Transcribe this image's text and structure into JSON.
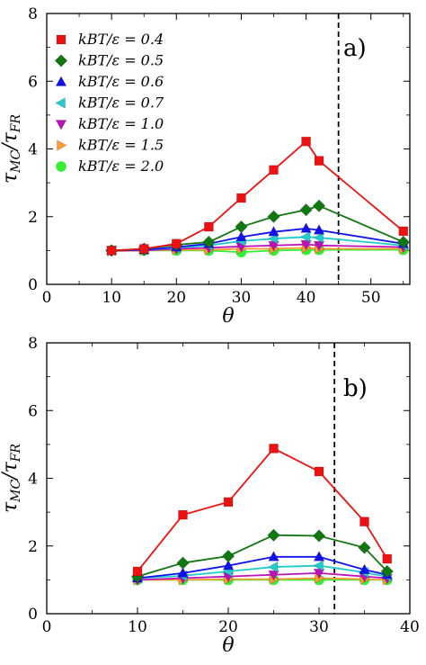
{
  "chart_data": [
    {
      "type": "line",
      "panel_label": "a)",
      "xlabel": "θ",
      "ylabel": "τMC/τFR",
      "xlim": [
        0,
        56
      ],
      "ylim": [
        0,
        8
      ],
      "xticks": [
        0,
        10,
        20,
        30,
        40,
        50
      ],
      "yticks": [
        0,
        2,
        4,
        6,
        8
      ],
      "vline": 45,
      "legend_position": "top-left",
      "series": [
        {
          "name": "kBT/ε = 0.4",
          "color": "#ee1111",
          "marker": "square",
          "x": [
            10,
            15,
            20,
            25,
            30,
            35,
            40,
            42,
            55
          ],
          "y": [
            1.0,
            1.05,
            1.2,
            1.7,
            2.55,
            3.38,
            4.22,
            3.65,
            1.57
          ]
        },
        {
          "name": "kBT/ε = 0.5",
          "color": "#117711",
          "marker": "diamond",
          "x": [
            10,
            15,
            20,
            25,
            30,
            35,
            40,
            42,
            55
          ],
          "y": [
            1.0,
            1.05,
            1.17,
            1.25,
            1.7,
            2.0,
            2.2,
            2.32,
            1.25
          ]
        },
        {
          "name": "kBT/ε = 0.6",
          "color": "#1111ee",
          "marker": "triangle-up",
          "x": [
            10,
            15,
            20,
            25,
            30,
            35,
            40,
            42,
            55
          ],
          "y": [
            1.0,
            1.02,
            1.1,
            1.2,
            1.4,
            1.55,
            1.65,
            1.6,
            1.2
          ]
        },
        {
          "name": "kBT/ε = 0.7",
          "color": "#22cccc",
          "marker": "triangle-left",
          "x": [
            10,
            15,
            20,
            25,
            30,
            35,
            40,
            42,
            55
          ],
          "y": [
            1.0,
            1.02,
            1.08,
            1.15,
            1.28,
            1.35,
            1.4,
            1.38,
            1.15
          ]
        },
        {
          "name": "kBT/ε = 1.0",
          "color": "#bb11bb",
          "marker": "triangle-down",
          "x": [
            10,
            15,
            20,
            25,
            30,
            35,
            40,
            42,
            55
          ],
          "y": [
            1.0,
            1.0,
            1.05,
            1.08,
            1.12,
            1.15,
            1.18,
            1.15,
            1.1
          ]
        },
        {
          "name": "kBT/ε = 1.5",
          "color": "#ff9933",
          "marker": "triangle-right",
          "x": [
            10,
            15,
            20,
            25,
            30,
            35,
            40,
            42,
            55
          ],
          "y": [
            0.98,
            1.0,
            1.02,
            1.02,
            1.05,
            1.05,
            1.08,
            1.05,
            1.05
          ]
        },
        {
          "name": "kBT/ε = 2.0",
          "color": "#33ee33",
          "marker": "circle",
          "x": [
            10,
            15,
            20,
            25,
            30,
            35,
            40,
            42,
            55
          ],
          "y": [
            1.0,
            1.0,
            1.0,
            1.0,
            0.95,
            1.0,
            1.02,
            1.02,
            1.02
          ]
        }
      ]
    },
    {
      "type": "line",
      "panel_label": "b)",
      "xlabel": "θ",
      "ylabel": "τMC/τFR",
      "xlim": [
        0,
        40
      ],
      "ylim": [
        0,
        8
      ],
      "xticks": [
        0,
        10,
        20,
        30,
        40
      ],
      "yticks": [
        0,
        2,
        4,
        6,
        8
      ],
      "vline": 31.7,
      "series": [
        {
          "name": "kBT/ε = 0.4",
          "color": "#ee1111",
          "marker": "square",
          "x": [
            10,
            15,
            20,
            25,
            30,
            35,
            37.5
          ],
          "y": [
            1.25,
            2.92,
            3.3,
            4.88,
            4.2,
            2.72,
            1.62
          ]
        },
        {
          "name": "kBT/ε = 0.5",
          "color": "#117711",
          "marker": "diamond",
          "x": [
            10,
            15,
            20,
            25,
            30,
            35,
            37.5
          ],
          "y": [
            1.1,
            1.5,
            1.7,
            2.32,
            2.3,
            1.95,
            1.25
          ]
        },
        {
          "name": "kBT/ε = 0.6",
          "color": "#1111ee",
          "marker": "triangle-up",
          "x": [
            10,
            15,
            20,
            25,
            30,
            35,
            37.5
          ],
          "y": [
            1.05,
            1.2,
            1.42,
            1.68,
            1.68,
            1.3,
            1.15
          ]
        },
        {
          "name": "kBT/ε = 0.7",
          "color": "#22cccc",
          "marker": "triangle-left",
          "x": [
            10,
            15,
            20,
            25,
            30,
            35,
            37.5
          ],
          "y": [
            1.05,
            1.12,
            1.25,
            1.38,
            1.42,
            1.22,
            1.1
          ]
        },
        {
          "name": "kBT/ε = 1.0",
          "color": "#bb11bb",
          "marker": "triangle-down",
          "x": [
            10,
            15,
            20,
            25,
            30,
            35,
            37.5
          ],
          "y": [
            1.0,
            1.05,
            1.1,
            1.15,
            1.2,
            1.1,
            1.05
          ]
        },
        {
          "name": "kBT/ε = 1.5",
          "color": "#ff9933",
          "marker": "triangle-right",
          "x": [
            10,
            15,
            20,
            25,
            30,
            35,
            37.5
          ],
          "y": [
            1.0,
            1.0,
            1.02,
            1.02,
            1.05,
            1.02,
            1.0
          ]
        },
        {
          "name": "kBT/ε = 2.0",
          "color": "#33ee33",
          "marker": "circle",
          "x": [
            10,
            15,
            20,
            25,
            30,
            35,
            37.5
          ],
          "y": [
            1.0,
            1.0,
            1.0,
            1.0,
            1.0,
            1.0,
            1.0
          ]
        }
      ]
    }
  ]
}
